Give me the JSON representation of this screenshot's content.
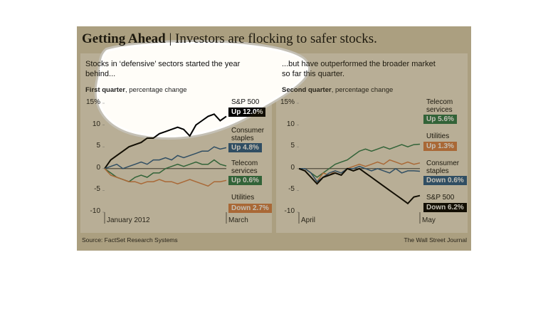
{
  "header": {
    "title": "Getting Ahead",
    "subtitle": "| Investors are flocking to safer stocks."
  },
  "chart_data": [
    {
      "type": "line",
      "subtitle": "Stocks in ‘defensive’ sectors started the year behind...",
      "ylabel_bold": "First quarter",
      "ylabel": ", percentage change",
      "categories": [
        "January 2012",
        null,
        null,
        null,
        null,
        null,
        null,
        null,
        null,
        null,
        null,
        null,
        null,
        null,
        null,
        null,
        null,
        null,
        null,
        null,
        "March"
      ],
      "ylim": [
        -10,
        15
      ],
      "yticks": [
        {
          "value": 15,
          "label": "15%"
        },
        10,
        5,
        0,
        -5,
        -10
      ],
      "series": [
        {
          "name": "S&P 500",
          "color": "#000000",
          "values": [
            0,
            2,
            3,
            4,
            5,
            5.5,
            6,
            7,
            7,
            8,
            8.5,
            9,
            9.5,
            9,
            7.5,
            10,
            11,
            12,
            12.5,
            11,
            12.0
          ],
          "value_labels": [
            null,
            null,
            null,
            null,
            null,
            null,
            null,
            null,
            null,
            null,
            null,
            null,
            null,
            null,
            null,
            null,
            null,
            null,
            null,
            null,
            "Up 12.0%"
          ]
        },
        {
          "name": "Consumer staples",
          "color": "#2b5c8a",
          "values": [
            0,
            0.5,
            1,
            0,
            0.5,
            1,
            1.5,
            1,
            2,
            2,
            2.5,
            2,
            3,
            2.5,
            3,
            3.5,
            4,
            4,
            5,
            4.5,
            4.8
          ],
          "value_labels": [
            null,
            null,
            null,
            null,
            null,
            null,
            null,
            null,
            null,
            null,
            null,
            null,
            null,
            null,
            null,
            null,
            null,
            null,
            null,
            null,
            "Up 4.8%"
          ]
        },
        {
          "name": "Telecom services",
          "color": "#2e7a4c",
          "values": [
            0,
            -1,
            -2,
            -2.5,
            -3,
            -2,
            -1.5,
            -2,
            -1,
            -1,
            0,
            0.5,
            1,
            0.5,
            1,
            1.5,
            1,
            1,
            2,
            1,
            0.6
          ],
          "value_labels": [
            null,
            null,
            null,
            null,
            null,
            null,
            null,
            null,
            null,
            null,
            null,
            null,
            null,
            null,
            null,
            null,
            null,
            null,
            null,
            null,
            "Up 0.6%"
          ]
        },
        {
          "name": "Utilities",
          "color": "#d8824a",
          "values": [
            0,
            -1.5,
            -2,
            -2.5,
            -3,
            -3,
            -3.5,
            -3,
            -3,
            -2.5,
            -3,
            -3,
            -3.5,
            -3,
            -2.5,
            -3,
            -3.5,
            -4,
            -3,
            -3,
            -2.7
          ],
          "value_labels": [
            null,
            null,
            null,
            null,
            null,
            null,
            null,
            null,
            null,
            null,
            null,
            null,
            null,
            null,
            null,
            null,
            null,
            null,
            null,
            null,
            "Down 2.7%"
          ]
        }
      ]
    },
    {
      "type": "line",
      "subtitle": "...but have outperformed the broader market so far this quarter.",
      "ylabel_bold": "Second quarter",
      "ylabel": ", percentage change",
      "categories": [
        "April",
        null,
        null,
        null,
        null,
        null,
        null,
        null,
        null,
        null,
        null,
        null,
        null,
        null,
        null,
        null,
        null,
        null,
        null,
        null,
        "May"
      ],
      "ylim": [
        -10,
        15
      ],
      "yticks": [
        {
          "value": 15,
          "label": "15%"
        },
        10,
        5,
        0,
        -5,
        -10
      ],
      "series": [
        {
          "name": "Telecom services",
          "color": "#2e7a4c",
          "values": [
            0,
            0,
            -1,
            -2,
            -1,
            0,
            1,
            1.5,
            2,
            3,
            4,
            4.5,
            4,
            4.5,
            5,
            4.5,
            5,
            5.5,
            5,
            5.5,
            5.6
          ],
          "value_labels": [
            null,
            null,
            null,
            null,
            null,
            null,
            null,
            null,
            null,
            null,
            null,
            null,
            null,
            null,
            null,
            null,
            null,
            null,
            null,
            null,
            "Up 5.6%"
          ]
        },
        {
          "name": "Utilities",
          "color": "#d8824a",
          "values": [
            0,
            0,
            -1,
            -3,
            -1,
            -1.5,
            -0.5,
            -1,
            0,
            0.5,
            1,
            0.5,
            1,
            1.5,
            1,
            2,
            1.5,
            1,
            1.5,
            1,
            1.3
          ],
          "value_labels": [
            null,
            null,
            null,
            null,
            null,
            null,
            null,
            null,
            null,
            null,
            null,
            null,
            null,
            null,
            null,
            null,
            null,
            null,
            null,
            null,
            "Up 1.3%"
          ]
        },
        {
          "name": "Consumer staples",
          "color": "#2b5c8a",
          "values": [
            0,
            0,
            -1,
            -3,
            -2,
            -1,
            -0.5,
            -1,
            0,
            0,
            0.5,
            0,
            -0.5,
            0,
            -0.5,
            -1,
            0,
            -1,
            -0.5,
            -0.5,
            -0.6
          ],
          "value_labels": [
            null,
            null,
            null,
            null,
            null,
            null,
            null,
            null,
            null,
            null,
            null,
            null,
            null,
            null,
            null,
            null,
            null,
            null,
            null,
            null,
            "Down 0.6%"
          ]
        },
        {
          "name": "S&P 500",
          "color": "#000000",
          "values": [
            0,
            -0.5,
            -2,
            -3.5,
            -2,
            -1.5,
            -1,
            -1.5,
            0,
            -0.5,
            0,
            -1,
            -2,
            -3,
            -4,
            -5,
            -6,
            -7,
            -8,
            -6.5,
            -6.2
          ],
          "value_labels": [
            null,
            null,
            null,
            null,
            null,
            null,
            null,
            null,
            null,
            null,
            null,
            null,
            null,
            null,
            null,
            null,
            null,
            null,
            null,
            null,
            "Down 6.2%"
          ]
        }
      ]
    }
  ],
  "footer": {
    "source": "Source: FactSet Research Systems",
    "credit": "The Wall Street Journal"
  }
}
